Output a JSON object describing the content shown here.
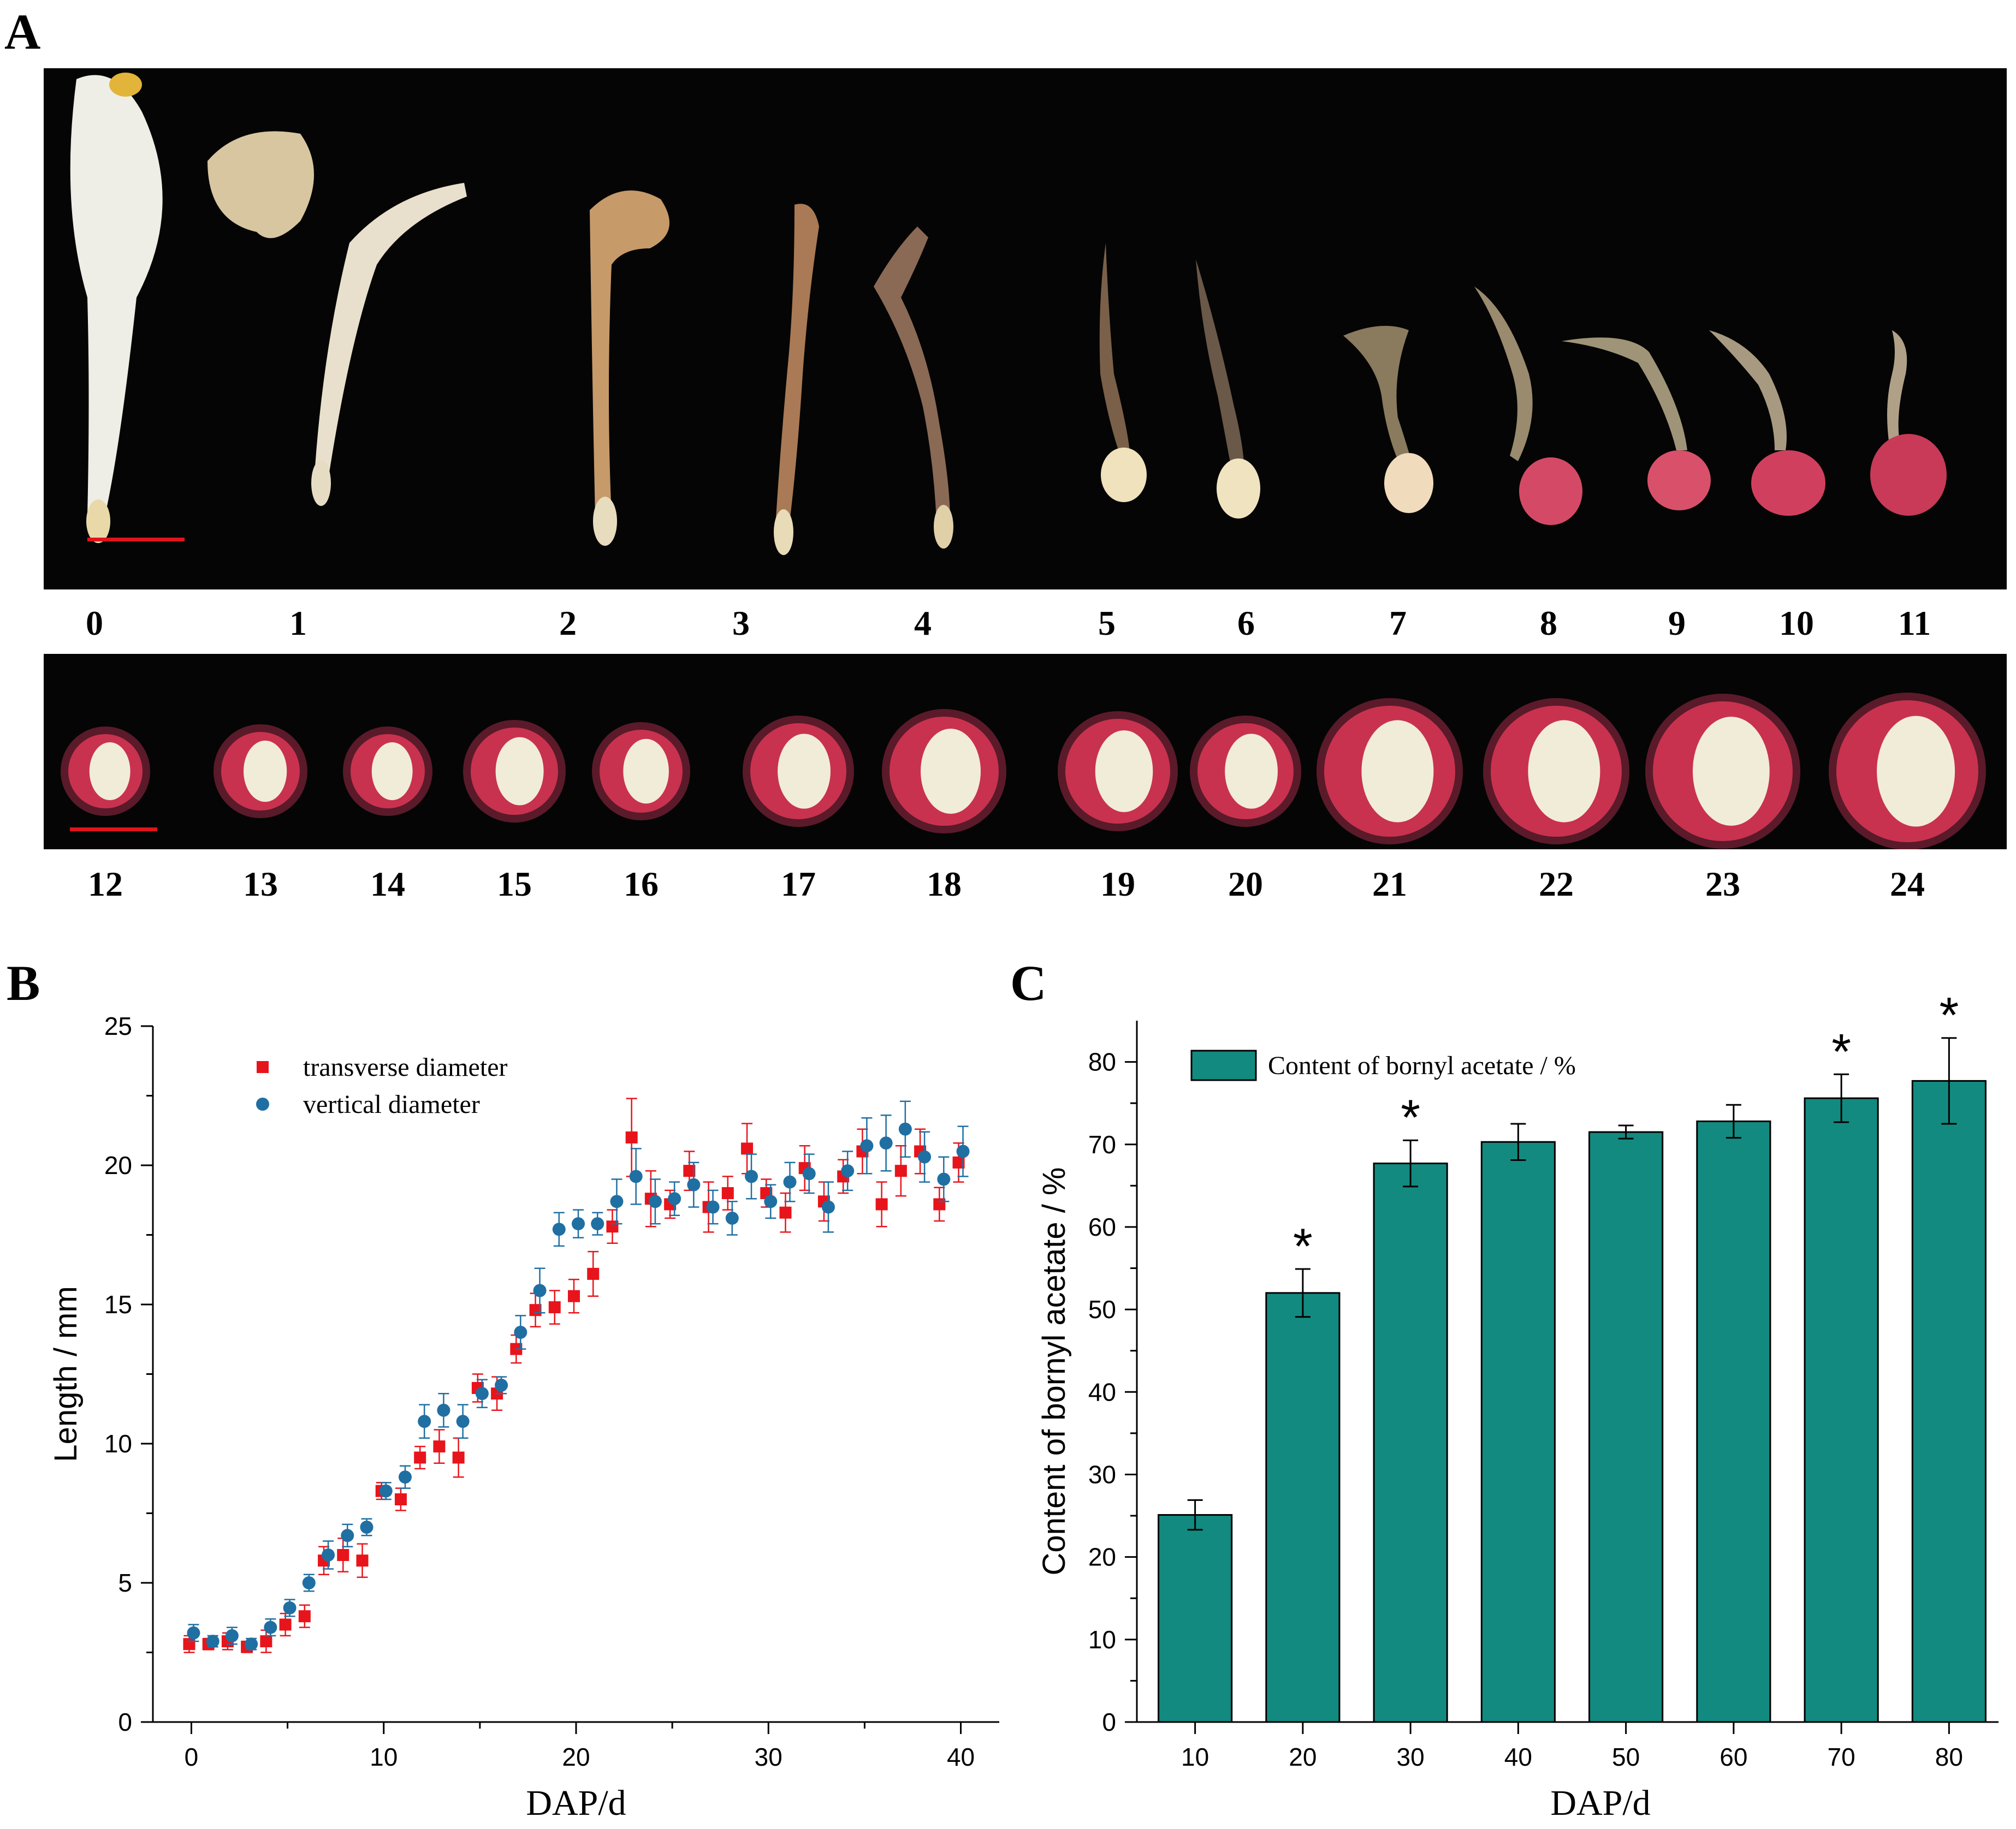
{
  "panels": {
    "a_label": "A",
    "b_label": "B",
    "c_label": "C"
  },
  "photo_row1": {
    "stages": [
      "0",
      "1",
      "2",
      "3",
      "4",
      "5",
      "6",
      "7",
      "8",
      "9",
      "10",
      "11"
    ]
  },
  "photo_row2": {
    "stages": [
      "12",
      "13",
      "14",
      "15",
      "16",
      "17",
      "18",
      "19",
      "20",
      "21",
      "22",
      "23",
      "24"
    ]
  },
  "colors": {
    "transverse": "#e8141b",
    "vertical": "#1f6fa3",
    "bar_fill": "#138a80",
    "scale_bar": "#e0141b"
  },
  "chart_data": [
    {
      "type": "scatter",
      "xlabel": "DAP/d",
      "ylabel": "Length / mm",
      "xlim": [
        -2,
        42
      ],
      "ylim": [
        0,
        25
      ],
      "xticks": [
        0,
        10,
        20,
        30,
        40
      ],
      "yticks": [
        0,
        5,
        10,
        15,
        20,
        25
      ],
      "legend_position": "top-left",
      "series": [
        {
          "name": "transverse diameter",
          "marker": "square",
          "x": [
            0,
            1,
            2,
            3,
            4,
            5,
            6,
            7,
            8,
            9,
            10,
            11,
            12,
            13,
            14,
            15,
            16,
            17,
            18,
            19,
            20,
            21,
            22,
            23,
            24,
            25,
            26,
            27,
            28,
            29,
            30,
            31,
            32,
            33,
            34,
            35,
            36,
            37,
            38,
            39,
            40
          ],
          "y": [
            2.8,
            2.8,
            2.9,
            2.7,
            2.9,
            3.5,
            3.8,
            5.8,
            6.0,
            5.8,
            8.3,
            8.0,
            9.5,
            9.9,
            9.5,
            12.0,
            11.8,
            13.4,
            14.8,
            14.9,
            15.3,
            16.1,
            17.8,
            21.0,
            18.8,
            18.6,
            19.8,
            18.5,
            19.0,
            20.6,
            19.0,
            18.3,
            19.9,
            18.7,
            19.6,
            20.5,
            18.6,
            19.8,
            20.5,
            18.6,
            20.1
          ],
          "err": [
            0.3,
            0.2,
            0.3,
            0.2,
            0.4,
            0.4,
            0.4,
            0.5,
            0.6,
            0.6,
            0.3,
            0.4,
            0.4,
            0.6,
            0.7,
            0.5,
            0.6,
            0.5,
            0.6,
            0.6,
            0.6,
            0.8,
            0.6,
            1.4,
            1.0,
            0.5,
            0.7,
            0.9,
            0.6,
            0.9,
            0.5,
            0.7,
            0.8,
            0.7,
            0.6,
            0.8,
            0.8,
            0.9,
            0.8,
            0.6,
            0.7
          ]
        },
        {
          "name": "vertical diameter",
          "marker": "circle",
          "x": [
            0,
            1,
            2,
            3,
            4,
            5,
            6,
            7,
            8,
            9,
            10,
            11,
            12,
            13,
            14,
            15,
            16,
            17,
            18,
            19,
            20,
            21,
            22,
            23,
            24,
            25,
            26,
            27,
            28,
            29,
            30,
            31,
            32,
            33,
            34,
            35,
            36,
            37,
            38,
            39,
            40
          ],
          "y": [
            3.2,
            2.9,
            3.1,
            2.8,
            3.4,
            4.1,
            5.0,
            6.0,
            6.7,
            7.0,
            8.3,
            8.8,
            10.8,
            11.2,
            10.8,
            11.8,
            12.1,
            14.0,
            15.5,
            17.7,
            17.9,
            17.9,
            18.7,
            19.6,
            18.7,
            18.8,
            19.3,
            18.5,
            18.1,
            19.6,
            18.7,
            19.4,
            19.7,
            18.5,
            19.8,
            20.7,
            20.8,
            21.3,
            20.3,
            19.5,
            20.5
          ],
          "err": [
            0.3,
            0.2,
            0.3,
            0.2,
            0.3,
            0.3,
            0.3,
            0.5,
            0.4,
            0.3,
            0.3,
            0.4,
            0.6,
            0.6,
            0.6,
            0.5,
            0.3,
            0.6,
            0.8,
            0.6,
            0.5,
            0.4,
            0.8,
            1.0,
            0.8,
            0.6,
            0.8,
            0.6,
            0.6,
            0.8,
            0.6,
            0.7,
            0.7,
            0.9,
            0.7,
            1.0,
            1.0,
            1.0,
            0.9,
            0.8,
            0.9
          ]
        }
      ]
    },
    {
      "type": "bar",
      "xlabel": "DAP/d",
      "ylabel": "Content of bornyl acetate / %",
      "ylim": [
        0,
        85
      ],
      "yticks": [
        0,
        10,
        20,
        30,
        40,
        50,
        60,
        70,
        80
      ],
      "legend_position": "top-left",
      "categories": [
        "10",
        "20",
        "30",
        "40",
        "50",
        "60",
        "70",
        "80"
      ],
      "series": [
        {
          "name": "Content of bornyl acetate / %",
          "values": [
            25.1,
            52.0,
            67.7,
            70.3,
            71.5,
            72.8,
            75.6,
            77.7
          ],
          "err": [
            1.8,
            2.9,
            2.8,
            2.2,
            0.8,
            2.0,
            2.9,
            5.2
          ],
          "significant": [
            false,
            true,
            true,
            false,
            false,
            false,
            true,
            true
          ]
        }
      ],
      "significance_symbol": "*"
    }
  ]
}
